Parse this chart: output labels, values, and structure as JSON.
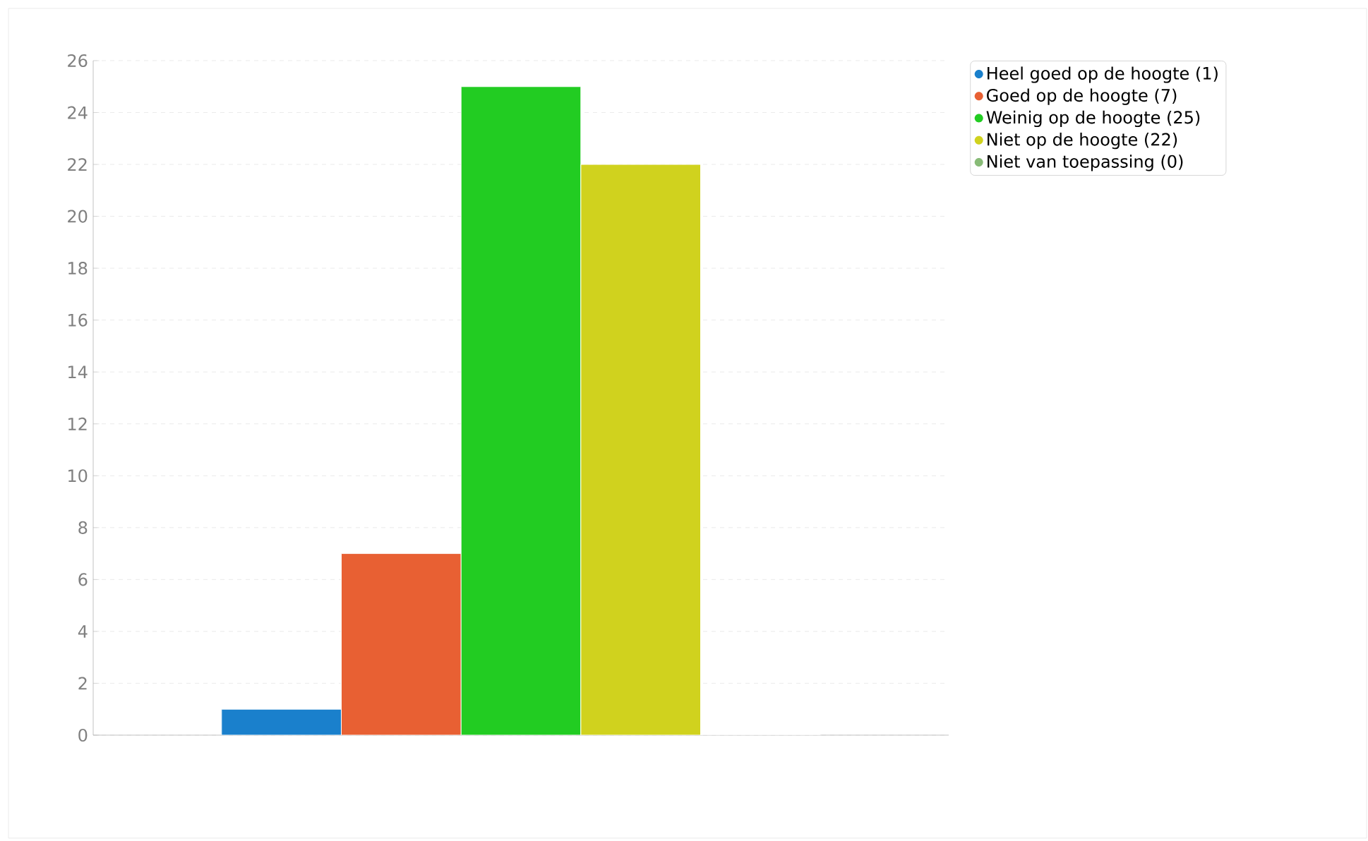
{
  "chart_data": {
    "type": "bar",
    "categories": [
      null
    ],
    "series": [
      {
        "name": "Heel goed op de hoogte (1)",
        "color": "#1a80cc",
        "values": [
          1
        ]
      },
      {
        "name": "Goed op de hoogte (7)",
        "color": "#e86033",
        "values": [
          7
        ]
      },
      {
        "name": "Weinig op de hoogte (25)",
        "color": "#22cc22",
        "values": [
          25
        ]
      },
      {
        "name": "Niet op de hoogte (22)",
        "color": "#d0d21e",
        "values": [
          22
        ]
      },
      {
        "name": "Niet van toepassing (0)",
        "color": "#88bb77",
        "values": [
          0
        ]
      }
    ],
    "ylim": [
      0,
      26
    ],
    "yticks": [
      0,
      2,
      4,
      6,
      8,
      10,
      12,
      14,
      16,
      18,
      20,
      22,
      24,
      26
    ],
    "grid": "y",
    "legend": "top right"
  }
}
